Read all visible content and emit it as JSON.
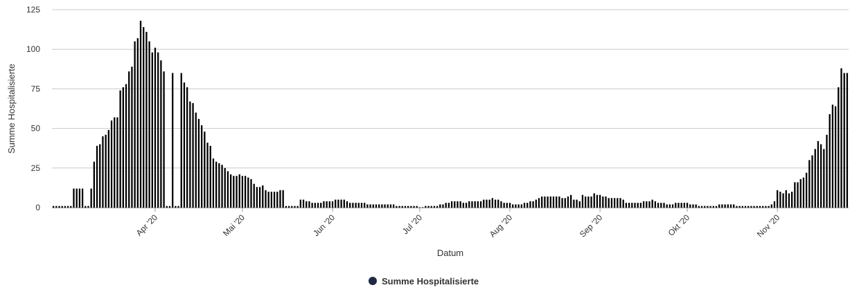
{
  "chart_data": {
    "type": "bar",
    "title": "",
    "xlabel": "Datum",
    "ylabel": "Summe Hospitalisierte",
    "ylim": [
      0,
      125
    ],
    "yticks": [
      0,
      25,
      50,
      75,
      100,
      125
    ],
    "grid": true,
    "legend_position": "bottom-center",
    "bar_color": "#000000",
    "gridline_color": "#c8c8c8",
    "legend_marker_color": "#1f2a44",
    "x_start_date": "2020-02-26",
    "x_tick_labels": [
      {
        "label": "Apr '20",
        "date": "2020-04-01"
      },
      {
        "label": "Mai '20",
        "date": "2020-05-01"
      },
      {
        "label": "Jun '20",
        "date": "2020-06-01"
      },
      {
        "label": "Jul '20",
        "date": "2020-07-01"
      },
      {
        "label": "Aug '20",
        "date": "2020-08-01"
      },
      {
        "label": "Sep '20",
        "date": "2020-09-01"
      },
      {
        "label": "Okt '20",
        "date": "2020-10-01"
      },
      {
        "label": "Nov '20",
        "date": "2020-11-01"
      }
    ],
    "series": [
      {
        "name": "Summe Hospitalisierte",
        "values": [
          1,
          1,
          1,
          1,
          1,
          1,
          1,
          12,
          12,
          12,
          12,
          1,
          1,
          12,
          29,
          39,
          40,
          45,
          46,
          49,
          55,
          57,
          57,
          74,
          76,
          78,
          86,
          89,
          105,
          107,
          118,
          114,
          111,
          105,
          98,
          101,
          98,
          93,
          86,
          1,
          1,
          85,
          1,
          1,
          85,
          79,
          76,
          67,
          66,
          60,
          56,
          52,
          48,
          41,
          39,
          31,
          29,
          28,
          27,
          25,
          23,
          21,
          20,
          20,
          21,
          20,
          20,
          19,
          18,
          15,
          13,
          13,
          14,
          11,
          10,
          10,
          10,
          10,
          11,
          11,
          1,
          1,
          1,
          1,
          1,
          5,
          5,
          4,
          4,
          3,
          3,
          3,
          3,
          4,
          4,
          4,
          4,
          5,
          5,
          5,
          5,
          4,
          3,
          3,
          3,
          3,
          3,
          3,
          2,
          2,
          2,
          2,
          2,
          2,
          2,
          2,
          2,
          2,
          1,
          1,
          1,
          1,
          1,
          1,
          1,
          1,
          0,
          0,
          1,
          1,
          1,
          1,
          1,
          2,
          2,
          3,
          3,
          4,
          4,
          4,
          4,
          3,
          3,
          4,
          4,
          4,
          4,
          4,
          5,
          5,
          5,
          6,
          5,
          5,
          4,
          3,
          3,
          3,
          2,
          2,
          2,
          2,
          3,
          3,
          4,
          4,
          5,
          6,
          7,
          7,
          7,
          7,
          7,
          7,
          7,
          6,
          6,
          7,
          8,
          5,
          5,
          4,
          8,
          7,
          7,
          7,
          9,
          8,
          8,
          7,
          7,
          6,
          6,
          6,
          6,
          6,
          5,
          3,
          3,
          3,
          3,
          3,
          3,
          4,
          4,
          4,
          5,
          4,
          3,
          3,
          3,
          2,
          2,
          2,
          3,
          3,
          3,
          3,
          3,
          2,
          2,
          2,
          1,
          1,
          1,
          1,
          1,
          1,
          1,
          2,
          2,
          2,
          2,
          2,
          2,
          1,
          1,
          1,
          1,
          1,
          1,
          1,
          1,
          1,
          1,
          1,
          1,
          2,
          4,
          11,
          10,
          9,
          11,
          9,
          10,
          16,
          16,
          18,
          19,
          22,
          30,
          33,
          37,
          42,
          40,
          37,
          46,
          59,
          65,
          64,
          76,
          88,
          85,
          85
        ]
      }
    ],
    "legend": [
      "Summe Hospitalisierte"
    ]
  }
}
